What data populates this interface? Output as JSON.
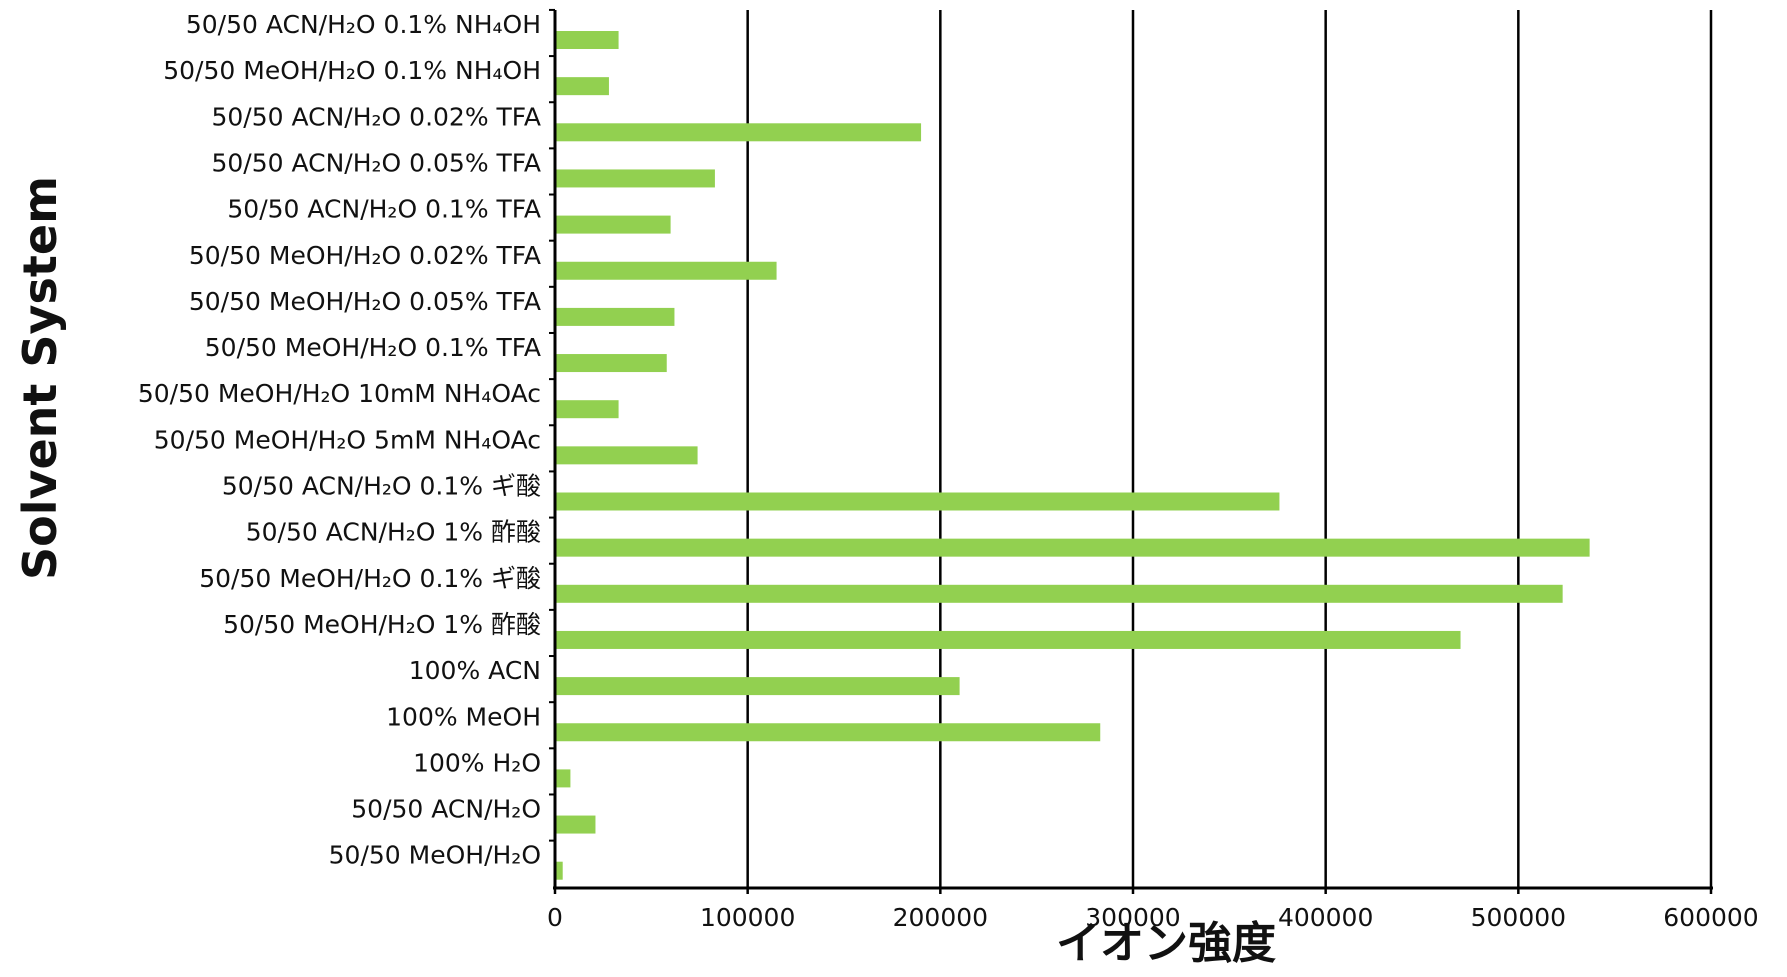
{
  "chart_data": {
    "type": "bar",
    "orientation": "horizontal",
    "xlabel": "イオン強度",
    "ylabel": "Solvent System",
    "xlim": [
      0,
      600000
    ],
    "xticks": [
      "0",
      "100000",
      "200000",
      "300000",
      "400000",
      "500000",
      "600000"
    ],
    "grid": "vertical",
    "legend": "none",
    "bar_color": "#92d050",
    "categories": [
      "50/50 ACN/H₂O 0.1% NH₄OH",
      "50/50 MeOH/H₂O 0.1% NH₄OH",
      "50/50 ACN/H₂O 0.02% TFA",
      "50/50 ACN/H₂O 0.05% TFA",
      "50/50 ACN/H₂O 0.1% TFA",
      "50/50 MeOH/H₂O 0.02% TFA",
      "50/50 MeOH/H₂O 0.05% TFA",
      "50/50 MeOH/H₂O 0.1% TFA",
      "50/50 MeOH/H₂O 10mM NH₄OAc",
      "50/50 MeOH/H₂O 5mM NH₄OAc",
      "50/50 ACN/H₂O 0.1% ギ酸",
      "50/50 ACN/H₂O 1% 酢酸",
      "50/50 MeOH/H₂O 0.1% ギ酸",
      "50/50 MeOH/H₂O 1% 酢酸",
      "100% ACN",
      "100% MeOH",
      "100% H₂O",
      "50/50 ACN/H₂O",
      "50/50 MeOH/H₂O"
    ],
    "values": [
      33000,
      28000,
      190000,
      83000,
      60000,
      115000,
      62000,
      58000,
      33000,
      74000,
      376000,
      537000,
      523000,
      470000,
      210000,
      283000,
      8000,
      21000,
      4000
    ]
  }
}
